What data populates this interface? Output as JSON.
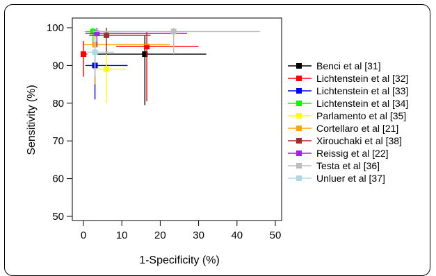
{
  "chart_data": {
    "type": "scatter",
    "xlabel": "1-Specificity (%)",
    "ylabel": "Sensitivity (%)",
    "xlim": [
      0,
      50
    ],
    "ylim": [
      50,
      100
    ],
    "xticks": [
      0,
      10,
      20,
      30,
      40,
      50
    ],
    "yticks": [
      50,
      60,
      70,
      80,
      90,
      100
    ],
    "grid": false,
    "legend_position": "right",
    "series": [
      {
        "name": "Benci et al [31]",
        "color": "#000000",
        "x": 16.0,
        "y": 93.0,
        "x_ci": [
          2.5,
          32.0
        ],
        "y_ci": [
          79.5,
          98.0
        ]
      },
      {
        "name": "Lichtenstein et al [32]",
        "color": "#ff0000",
        "x": 16.5,
        "y": 95.0,
        "x_ci": [
          8.5,
          30.0
        ],
        "y_ci": [
          80.5,
          99.0
        ]
      },
      {
        "name": "Lichtenstein et al [33]",
        "color": "#0000ff",
        "x": 3.0,
        "y": 90.0,
        "x_ci": [
          0.5,
          11.5
        ],
        "y_ci": [
          81.0,
          94.0
        ]
      },
      {
        "name": "Lichtenstein et al [34]",
        "color": "#00ff00",
        "x": 2.5,
        "y": 99.0,
        "x_ci": [
          0.5,
          10.0
        ],
        "y_ci": [
          96.0,
          100.0
        ]
      },
      {
        "name": "Parlamento et al [35]",
        "color": "#ffff00",
        "x": 6.0,
        "y": 89.0,
        "x_ci": [
          2.5,
          11.0
        ],
        "y_ci": [
          80.0,
          95.0
        ]
      },
      {
        "name": "Cortellaro et al [21]",
        "color": "#ffa500",
        "x": 3.0,
        "y": 95.5,
        "x_ci": [
          0.0,
          22.5
        ],
        "y_ci": [
          85.0,
          99.0
        ]
      },
      {
        "name": "Xirouchaki et al [38]",
        "color": "#a52a2a",
        "x": 6.0,
        "y": 98.0,
        "x_ci": [
          1.5,
          17.5
        ],
        "y_ci": [
          93.0,
          100.0
        ]
      },
      {
        "name": "Reissig et al [22]",
        "color": "#a020f0",
        "x": 3.5,
        "y": 98.5,
        "x_ci": [
          0.5,
          27.0
        ],
        "y_ci": [
          95.0,
          100.0
        ]
      },
      {
        "name": "Testa et al [36]",
        "color": "#bebebe",
        "x": 23.5,
        "y": 99.0,
        "x_ci": [
          2.5,
          46.0
        ],
        "y_ci": [
          93.0,
          100.0
        ]
      },
      {
        "name": "Unluer et al [37]",
        "color": "#add8e6",
        "x": 3.0,
        "y": 93.5,
        "x_ci": [
          1.0,
          8.0
        ],
        "y_ci": [
          87.0,
          97.0
        ]
      },
      {
        "name": "",
        "color": "#ff0000",
        "x": 0.0,
        "y": 93.0,
        "x_ci": [
          0.0,
          1.0
        ],
        "y_ci": [
          87.0,
          96.5
        ]
      }
    ]
  }
}
